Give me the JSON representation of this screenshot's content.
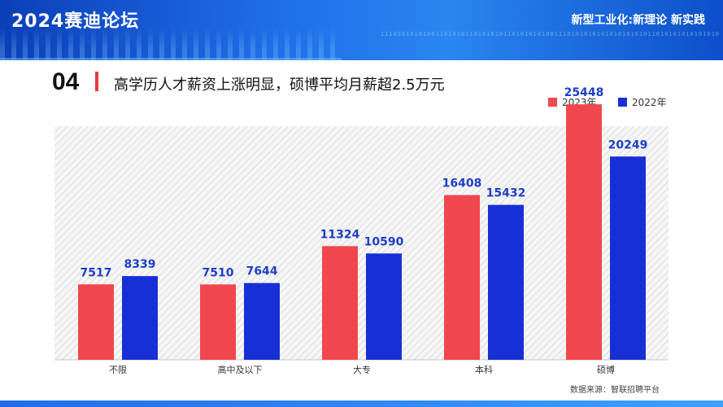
{
  "header": {
    "logo_text": "2024赛迪论坛",
    "tagline": "新型工业化:新理论 新实践",
    "binary_text": "11101010101001101010110101010110101010100111010101010101010101011010101010101010"
  },
  "section": {
    "number": "04",
    "headline": "高学历人才薪资上涨明显，硕博平均月薪超2.5万元"
  },
  "source_note": "数据来源：智联招聘平台",
  "colors": {
    "accent_red": "#f0474e",
    "accent_blue": "#1730d6",
    "banner_blue": "#1f6ee8"
  },
  "chart_data": {
    "type": "bar",
    "categories": [
      "不限",
      "高中及以下",
      "大专",
      "本科",
      "硕博"
    ],
    "series": [
      {
        "name": "2023年",
        "color": "#f0474e",
        "values": [
          7517,
          7510,
          11324,
          16408,
          25448
        ]
      },
      {
        "name": "2022年",
        "color": "#1730d6",
        "values": [
          8339,
          7644,
          10590,
          15432,
          20249
        ]
      }
    ],
    "ylim": [
      0,
      30000
    ],
    "legend_position": "top-right",
    "grid": false
  }
}
